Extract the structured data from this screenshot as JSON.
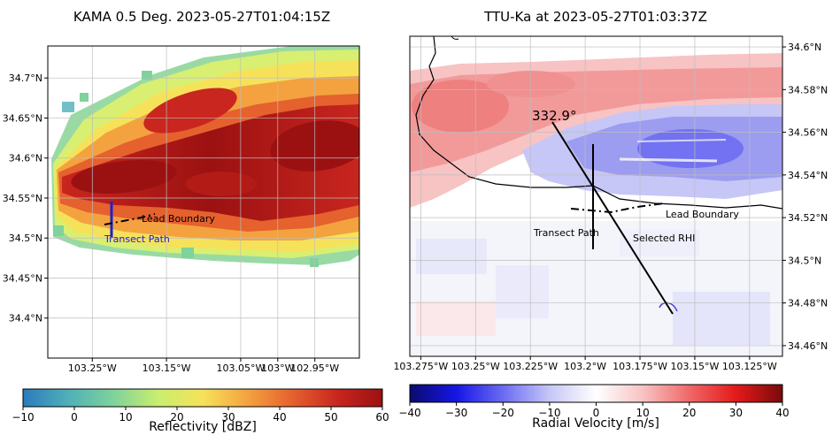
{
  "colors": {
    "reflectivity_stops": [
      "#2b7bbd",
      "#4fb0b8",
      "#7fd29b",
      "#c9ee6e",
      "#f6e25a",
      "#f4a23f",
      "#e5612e",
      "#c8261e",
      "#9b1111"
    ],
    "velocity_stops": [
      "#0b0b6e",
      "#1616e6",
      "#6b6bf2",
      "#c6c6f7",
      "#ffffff",
      "#f8c3c3",
      "#f06868",
      "#e41a1a",
      "#7a0a0a"
    ],
    "blue_marker": "#1f1fd0",
    "boundary_line": "#000000"
  },
  "chart_data": [
    {
      "type": "heatmap",
      "title": "KAMA 0.5 Deg. 2023-05-27T01:04:15Z",
      "field": "Reflectivity",
      "xlim": [
        -103.31,
        -102.89
      ],
      "ylim": [
        34.35,
        34.74
      ],
      "x_ticks": [
        -103.25,
        -103.15,
        -103.05,
        -103.0,
        -102.95
      ],
      "x_tick_labels": [
        "103.25°W",
        "103.15°W",
        "103.05°W",
        "103°W",
        "102.95°W"
      ],
      "y_ticks": [
        34.4,
        34.45,
        34.5,
        34.55,
        34.6,
        34.65,
        34.7
      ],
      "y_tick_labels": [
        "34.4°N",
        "34.45°N",
        "34.5°N",
        "34.55°N",
        "34.6°N",
        "34.65°N",
        "34.7°N"
      ],
      "grid": true,
      "annotations": [
        {
          "text": "Lead Boundary",
          "lon": -103.18,
          "lat": 34.522
        },
        {
          "text": "Transect Path",
          "lon": -103.225,
          "lat": 34.505
        }
      ],
      "colorbar": {
        "label": "Reflectivity [dBZ]",
        "range": [
          -10,
          60
        ],
        "ticks": [
          -10,
          0,
          10,
          20,
          30,
          40,
          50,
          60
        ],
        "tick_labels": [
          "−10",
          "0",
          "10",
          "20",
          "30",
          "40",
          "50",
          "60"
        ]
      }
    },
    {
      "type": "heatmap",
      "title": "TTU-Ka at 2023-05-27T01:03:37Z",
      "field": "Radial Velocity",
      "xlim": [
        -103.28,
        -103.11
      ],
      "ylim": [
        34.455,
        34.605
      ],
      "x_ticks": [
        -103.275,
        -103.25,
        -103.225,
        -103.2,
        -103.175,
        -103.15,
        -103.125
      ],
      "x_tick_labels": [
        "103.275°W",
        "103.25°W",
        "103.225°W",
        "103.2°W",
        "103.175°W",
        "103.15°W",
        "103.125°W"
      ],
      "y_ticks": [
        34.46,
        34.48,
        34.5,
        34.52,
        34.54,
        34.56,
        34.58,
        34.6
      ],
      "y_tick_labels": [
        "34.46°N",
        "34.48°N",
        "34.5°N",
        "34.52°N",
        "34.54°N",
        "34.56°N",
        "34.58°N",
        "34.6°N"
      ],
      "grid": true,
      "annotations": [
        {
          "text": "332.9°",
          "lon": -103.212,
          "lat": 34.566
        },
        {
          "text": "Lead Boundary",
          "lon": -103.165,
          "lat": 34.522
        },
        {
          "text": "Transect Path",
          "lon": -103.224,
          "lat": 34.513
        },
        {
          "text": "Selected RHI",
          "lon": -103.181,
          "lat": 34.51
        }
      ],
      "colorbar": {
        "label": "Radial Velocity [m/s]",
        "range": [
          -40,
          40
        ],
        "ticks": [
          -40,
          -30,
          -20,
          -10,
          0,
          10,
          20,
          30,
          40
        ],
        "tick_labels": [
          "−40",
          "−30",
          "−20",
          "−10",
          "0",
          "10",
          "20",
          "30",
          "40"
        ]
      }
    }
  ]
}
